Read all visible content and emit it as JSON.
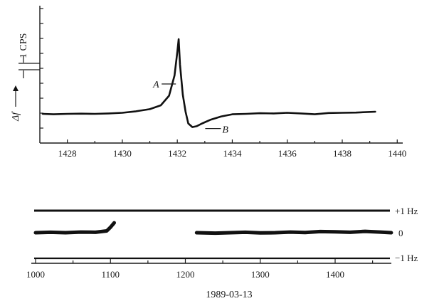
{
  "chart_data": [
    {
      "type": "line",
      "title": "",
      "xlabel": "",
      "ylabel": "Δf",
      "scale_label": "1 CPS",
      "xlim": [
        1427,
        1440
      ],
      "xticks": [
        1428,
        1430,
        1432,
        1434,
        1436,
        1438,
        1440
      ],
      "series": [
        {
          "x": [
            1427.1,
            1427.5,
            1428.0,
            1428.5,
            1429.0,
            1429.5,
            1430.0,
            1430.5,
            1431.0,
            1431.4,
            1431.7,
            1431.9,
            1432.0,
            1432.05,
            1432.1,
            1432.2,
            1432.3,
            1432.4,
            1432.55,
            1432.7,
            1432.9,
            1433.2,
            1433.6,
            1434.0,
            1434.5,
            1435.0,
            1435.5,
            1436.0,
            1436.5,
            1437.0,
            1437.5,
            1438.0,
            1438.5,
            1439.2
          ],
          "y": [
            0.0,
            -0.02,
            0.0,
            0.01,
            0.0,
            0.02,
            0.05,
            0.12,
            0.22,
            0.4,
            0.85,
            1.8,
            2.9,
            3.5,
            2.3,
            0.9,
            0.1,
            -0.45,
            -0.62,
            -0.58,
            -0.45,
            -0.28,
            -0.12,
            -0.02,
            0.0,
            0.03,
            0.02,
            0.05,
            0.02,
            -0.02,
            0.04,
            0.05,
            0.06,
            0.1
          ]
        }
      ],
      "annotations": [
        {
          "text": "A",
          "x": 1432.0,
          "y": 1.4
        },
        {
          "text": "B",
          "x": 1432.55,
          "y": -0.62
        }
      ]
    },
    {
      "type": "line",
      "title": "",
      "xlabel": "1989-03-13",
      "ylabel": "",
      "xlim": [
        1000,
        1480
      ],
      "xticks": [
        1000,
        1100,
        1200,
        1300,
        1400
      ],
      "ylim": [
        -1,
        1
      ],
      "yticks": [
        "+1 Hz",
        "0",
        "−1 Hz"
      ],
      "series": [
        {
          "x": [
            1000,
            1020,
            1040,
            1060,
            1080,
            1095,
            1100,
            1105
          ],
          "y": [
            0.0,
            0.02,
            0.0,
            0.03,
            0.02,
            0.08,
            0.25,
            0.45
          ]
        },
        {
          "x": [
            1215,
            1240,
            1260,
            1280,
            1300,
            1320,
            1340,
            1360,
            1380,
            1400,
            1420,
            1440,
            1460,
            1475
          ],
          "y": [
            0.0,
            -0.02,
            0.0,
            0.02,
            -0.01,
            0.0,
            0.03,
            0.01,
            0.05,
            0.04,
            0.02,
            0.06,
            0.03,
            0.0
          ]
        }
      ]
    }
  ]
}
